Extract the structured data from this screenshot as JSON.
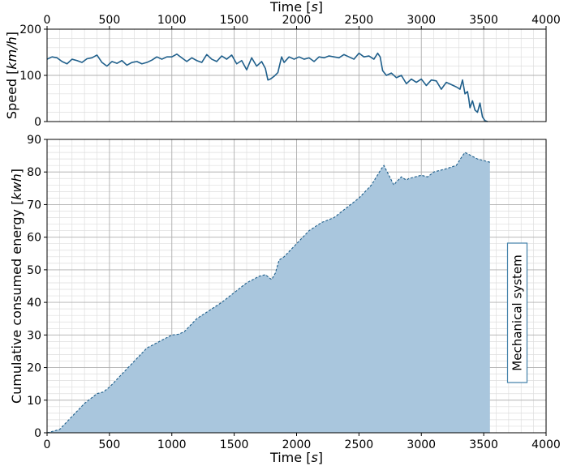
{
  "colors": {
    "speed_line": "#1f5f8b",
    "energy_fill": "#a9c6dd",
    "energy_edge": "#1f5f8b",
    "annotation_border": "#3f7fa8",
    "grid_major": "#b0b0b0",
    "grid_minor": "#dedede"
  },
  "chart_data": [
    {
      "type": "line",
      "title": "",
      "xlabel": "Time [s]",
      "ylabel": "Speed [km/h]",
      "xlabel_position": "top",
      "xlim": [
        0,
        4000
      ],
      "ylim": [
        0,
        200
      ],
      "xticks": [
        0,
        500,
        1000,
        1500,
        2000,
        2500,
        3000,
        3500,
        4000
      ],
      "yticks": [
        0,
        100,
        200
      ],
      "grid": true,
      "series": [
        {
          "x": [
            0,
            40,
            80,
            120,
            160,
            200,
            240,
            280,
            320,
            360,
            400,
            440,
            480,
            520,
            560,
            600,
            640,
            680,
            720,
            760,
            800,
            840,
            880,
            920,
            960,
            1000,
            1040,
            1080,
            1120,
            1160,
            1200,
            1240,
            1280,
            1320,
            1360,
            1400,
            1440,
            1480,
            1520,
            1560,
            1600,
            1640,
            1680,
            1720,
            1750,
            1770,
            1790,
            1820,
            1850,
            1880,
            1900,
            1940,
            1980,
            2020,
            2060,
            2100,
            2140,
            2180,
            2220,
            2260,
            2300,
            2340,
            2380,
            2420,
            2460,
            2500,
            2540,
            2580,
            2620,
            2650,
            2670,
            2690,
            2720,
            2760,
            2800,
            2840,
            2880,
            2920,
            2960,
            3000,
            3040,
            3080,
            3120,
            3160,
            3200,
            3240,
            3280,
            3310,
            3330,
            3350,
            3370,
            3380,
            3390,
            3410,
            3430,
            3450,
            3470,
            3490,
            3510,
            3530
          ],
          "y": [
            135,
            140,
            138,
            130,
            125,
            135,
            132,
            128,
            136,
            138,
            144,
            128,
            120,
            130,
            126,
            132,
            122,
            128,
            130,
            125,
            128,
            133,
            140,
            135,
            140,
            140,
            146,
            138,
            130,
            138,
            132,
            128,
            145,
            135,
            130,
            142,
            135,
            144,
            125,
            132,
            112,
            138,
            120,
            130,
            115,
            90,
            92,
            98,
            106,
            140,
            128,
            140,
            135,
            140,
            135,
            138,
            130,
            140,
            138,
            142,
            140,
            138,
            145,
            140,
            135,
            148,
            140,
            142,
            135,
            148,
            140,
            110,
            100,
            105,
            95,
            100,
            82,
            92,
            85,
            92,
            78,
            90,
            88,
            70,
            85,
            80,
            75,
            70,
            90,
            60,
            65,
            50,
            30,
            45,
            25,
            20,
            40,
            10,
            2,
            0
          ]
        }
      ]
    },
    {
      "type": "area",
      "title": "",
      "xlabel": "Time [s]",
      "ylabel": "Cumulative consumed energy [kwh]",
      "xlim": [
        0,
        4000
      ],
      "ylim": [
        0,
        90
      ],
      "xticks": [
        0,
        500,
        1000,
        1500,
        2000,
        2500,
        3000,
        3500,
        4000
      ],
      "yticks": [
        0,
        10,
        20,
        30,
        40,
        50,
        60,
        70,
        80,
        90
      ],
      "grid": true,
      "annotation": "Mechanical system",
      "series": [
        {
          "x": [
            0,
            50,
            100,
            200,
            300,
            400,
            450,
            500,
            600,
            700,
            800,
            900,
            1000,
            1050,
            1100,
            1200,
            1300,
            1400,
            1500,
            1600,
            1700,
            1750,
            1800,
            1830,
            1860,
            1900,
            1950,
            2000,
            2100,
            2200,
            2300,
            2400,
            2500,
            2600,
            2680,
            2700,
            2740,
            2780,
            2800,
            2840,
            2880,
            2900,
            2950,
            3000,
            3050,
            3100,
            3200,
            3280,
            3330,
            3350,
            3400,
            3450,
            3500,
            3550
          ],
          "y": [
            0,
            0.5,
            1,
            5,
            9,
            12,
            12.5,
            14,
            18,
            22,
            26,
            28,
            30,
            30.2,
            31,
            35,
            37.5,
            40,
            43,
            46,
            48,
            48.5,
            47,
            49,
            53,
            54,
            56,
            58,
            62,
            64.5,
            66,
            69,
            72,
            76,
            81,
            82,
            79,
            76,
            77,
            78.5,
            77.5,
            78,
            78.5,
            79,
            78.5,
            80,
            81,
            82,
            85,
            86,
            85,
            84,
            83.5,
            83
          ]
        }
      ]
    }
  ]
}
